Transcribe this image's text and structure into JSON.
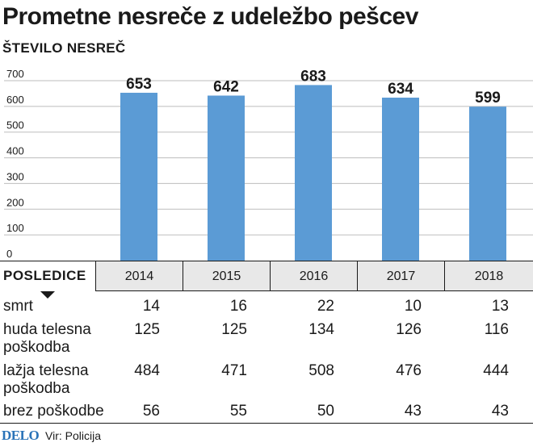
{
  "title": "Prometne nesreče z udeležbo pešcev",
  "subtitle": "ŠTEVILO NESREČ",
  "chart_data": {
    "type": "bar",
    "categories": [
      "2014",
      "2015",
      "2016",
      "2017",
      "2018"
    ],
    "values": [
      653,
      642,
      683,
      634,
      599
    ],
    "ylim": [
      0,
      700
    ],
    "yticks": [
      "0",
      "100",
      "200",
      "300",
      "400",
      "500",
      "600",
      "700"
    ],
    "grid": true,
    "bar_color": "#5b9bd5"
  },
  "table": {
    "header_label": "POSLEDICE",
    "rows": [
      {
        "label": "smrt",
        "values": [
          "14",
          "16",
          "22",
          "10",
          "13"
        ]
      },
      {
        "label": "huda telesna poškodba",
        "values": [
          "125",
          "125",
          "134",
          "126",
          "116"
        ]
      },
      {
        "label": "lažja telesna poškodba",
        "values": [
          "484",
          "471",
          "508",
          "476",
          "444"
        ]
      },
      {
        "label": "brez poškodbe",
        "values": [
          "56",
          "55",
          "50",
          "43",
          "43"
        ]
      }
    ]
  },
  "footer": {
    "logo": "DELO",
    "source": "Vir: Policija"
  }
}
